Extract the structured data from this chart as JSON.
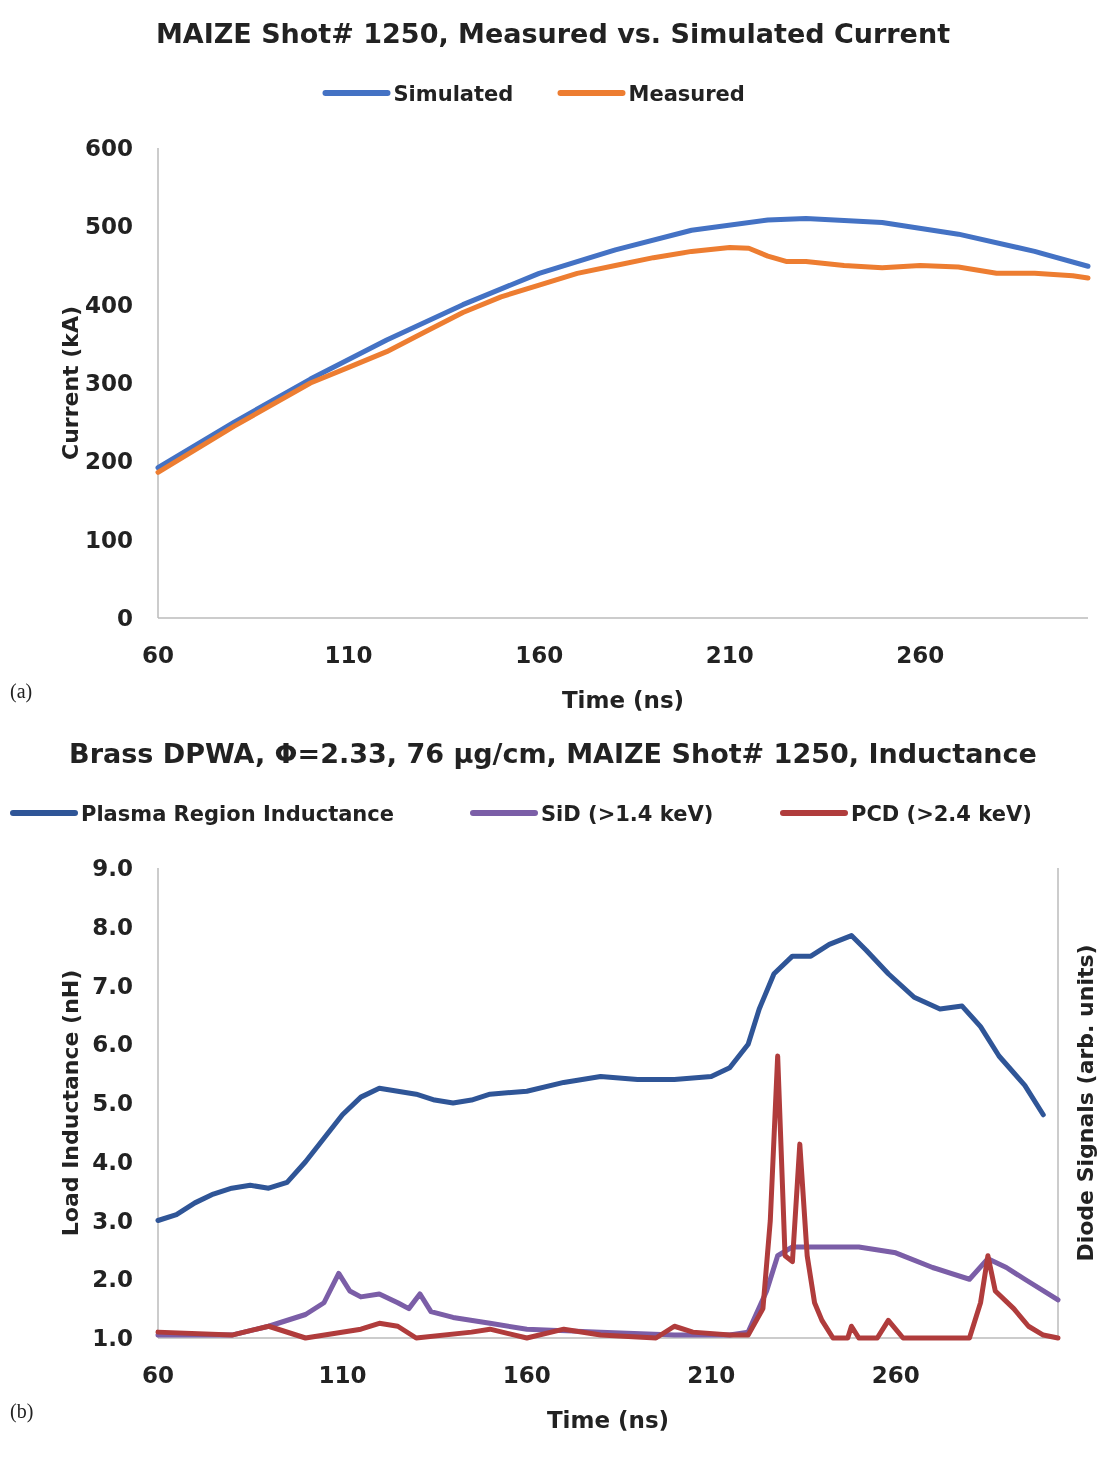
{
  "chart_data": [
    {
      "type": "line",
      "title": "MAIZE Shot# 1250, Measured vs. Simulated Current",
      "xlabel": "Time (ns)",
      "ylabel": "Current (kA)",
      "xlim": [
        60,
        304
      ],
      "xticks": [
        60,
        110,
        160,
        210,
        260
      ],
      "ylim": [
        0,
        600
      ],
      "yticks": [
        0,
        100,
        200,
        300,
        400,
        500,
        600
      ],
      "legend": "top",
      "annotations": [
        "(a)"
      ],
      "series": [
        {
          "name": "Simulated",
          "color": "#4472c4",
          "x": [
            60,
            80,
            100,
            120,
            140,
            160,
            180,
            200,
            220,
            230,
            250,
            270,
            290,
            304
          ],
          "values": [
            192,
            250,
            305,
            355,
            400,
            440,
            470,
            495,
            508,
            510,
            505,
            490,
            468,
            449
          ]
        },
        {
          "name": "Measured",
          "color": "#ed7d31",
          "x": [
            60,
            80,
            100,
            110,
            120,
            130,
            140,
            150,
            160,
            170,
            180,
            190,
            200,
            210,
            215,
            220,
            225,
            230,
            240,
            250,
            260,
            270,
            280,
            290,
            300,
            304
          ],
          "values": [
            186,
            245,
            300,
            320,
            340,
            365,
            390,
            410,
            425,
            440,
            450,
            460,
            468,
            473,
            472,
            462,
            455,
            455,
            450,
            447,
            450,
            448,
            440,
            440,
            437,
            434
          ]
        }
      ]
    },
    {
      "type": "line",
      "title": "Brass DPWA, Φ=2.33, 76 μg/cm, MAIZE Shot# 1250, Inductance",
      "xlabel": "Time (ns)",
      "ylabel": "Load Inductance (nH)",
      "y2label": "Diode Signals (arb. units)",
      "xlim": [
        60,
        304
      ],
      "xticks": [
        60,
        110,
        160,
        210,
        260
      ],
      "ylim": [
        1,
        9
      ],
      "yticks": [
        {
          "value": 1,
          "label": "1.0"
        },
        {
          "value": 2,
          "label": "2.0"
        },
        {
          "value": 3,
          "label": "3.0"
        },
        {
          "value": 4,
          "label": "4.0"
        },
        {
          "value": 5,
          "label": "5.0"
        },
        {
          "value": 6,
          "label": "6.0"
        },
        {
          "value": 7,
          "label": "7.0"
        },
        {
          "value": 8,
          "label": "8.0"
        },
        {
          "value": 9,
          "label": "9.0"
        }
      ],
      "legend": "top",
      "annotations": [
        "(b)"
      ],
      "series": [
        {
          "name": "Plasma Region Inductance",
          "color": "#2f5597",
          "x": [
            60,
            65,
            70,
            75,
            80,
            85,
            90,
            95,
            100,
            105,
            110,
            115,
            120,
            125,
            130,
            135,
            140,
            145,
            150,
            160,
            170,
            180,
            190,
            200,
            210,
            215,
            220,
            223,
            227,
            232,
            237,
            242,
            248,
            252,
            258,
            265,
            272,
            278,
            283,
            288,
            295,
            300
          ],
          "values": [
            3.0,
            3.1,
            3.3,
            3.45,
            3.55,
            3.6,
            3.55,
            3.65,
            4.0,
            4.4,
            4.8,
            5.1,
            5.25,
            5.2,
            5.15,
            5.05,
            5.0,
            5.05,
            5.15,
            5.2,
            5.35,
            5.45,
            5.4,
            5.4,
            5.45,
            5.6,
            6.0,
            6.6,
            7.2,
            7.5,
            7.5,
            7.7,
            7.85,
            7.6,
            7.2,
            6.8,
            6.6,
            6.65,
            6.3,
            5.8,
            5.3,
            4.8
          ]
        },
        {
          "name": "SiD (>1.4 keV)",
          "color": "#7b5ea7",
          "x": [
            60,
            80,
            90,
            100,
            105,
            109,
            112,
            115,
            120,
            125,
            128,
            131,
            134,
            140,
            150,
            160,
            180,
            200,
            215,
            220,
            225,
            228,
            232,
            240,
            250,
            260,
            270,
            280,
            285,
            290,
            295,
            304
          ],
          "values": [
            1.05,
            1.05,
            1.2,
            1.4,
            1.6,
            2.1,
            1.8,
            1.7,
            1.75,
            1.6,
            1.5,
            1.75,
            1.45,
            1.35,
            1.25,
            1.15,
            1.1,
            1.05,
            1.05,
            1.1,
            1.8,
            2.4,
            2.55,
            2.55,
            2.55,
            2.45,
            2.2,
            2.0,
            2.35,
            2.2,
            2.0,
            1.65
          ]
        },
        {
          "name": "PCD (>2.4 keV)",
          "color": "#b03c3c",
          "x": [
            60,
            80,
            90,
            100,
            115,
            120,
            125,
            130,
            145,
            150,
            160,
            170,
            180,
            195,
            200,
            205,
            215,
            220,
            224,
            226,
            228,
            230,
            232,
            234,
            236,
            238,
            240,
            243,
            247,
            248,
            250,
            255,
            258,
            262,
            270,
            280,
            283,
            285,
            287,
            292,
            296,
            300,
            304
          ],
          "values": [
            1.1,
            1.05,
            1.2,
            1.0,
            1.15,
            1.25,
            1.2,
            1.0,
            1.1,
            1.15,
            1.0,
            1.15,
            1.05,
            1.0,
            1.2,
            1.1,
            1.05,
            1.05,
            1.5,
            3.0,
            5.8,
            2.4,
            2.3,
            4.3,
            2.4,
            1.6,
            1.3,
            1.0,
            1.0,
            1.2,
            1.0,
            1.0,
            1.3,
            1.0,
            1.0,
            1.0,
            1.6,
            2.4,
            1.8,
            1.5,
            1.2,
            1.05,
            1.0
          ]
        }
      ]
    }
  ]
}
